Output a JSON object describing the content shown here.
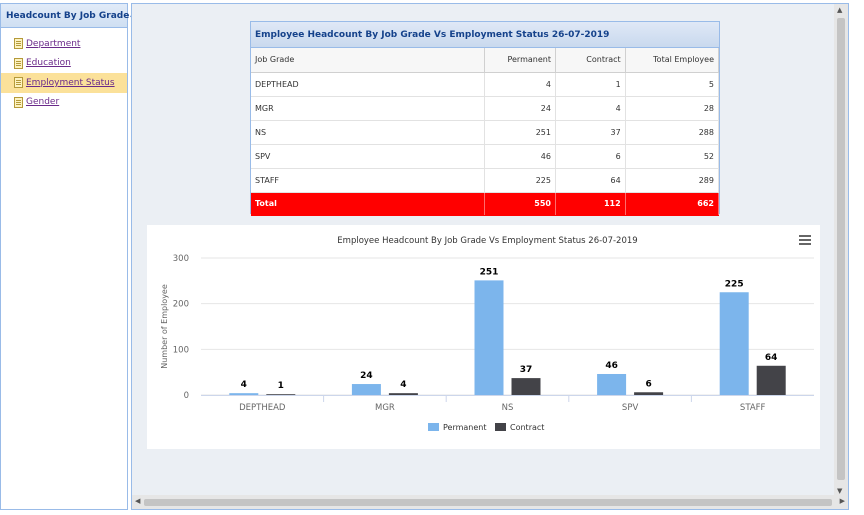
{
  "sidebar": {
    "title": "Headcount By Job Grade",
    "collapse_icon": "double-chevron-left-icon",
    "items": [
      {
        "label": "Department",
        "selected": false
      },
      {
        "label": "Education",
        "selected": false
      },
      {
        "label": "Employment Status",
        "selected": true
      },
      {
        "label": "Gender",
        "selected": false
      }
    ]
  },
  "table": {
    "title": "Employee Headcount By Job Grade Vs Employment Status 26-07-2019",
    "headers": [
      "Job Grade",
      "Permanent",
      "Contract",
      "Total Employee"
    ],
    "rows": [
      [
        "DEPTHEAD",
        "4",
        "1",
        "5"
      ],
      [
        "MGR",
        "24",
        "4",
        "28"
      ],
      [
        "NS",
        "251",
        "37",
        "288"
      ],
      [
        "SPV",
        "46",
        "6",
        "52"
      ],
      [
        "STAFF",
        "225",
        "64",
        "289"
      ]
    ],
    "total": [
      "Total",
      "550",
      "112",
      "662"
    ],
    "total_color": "#ff0000"
  },
  "chart_data": {
    "type": "bar",
    "title": "Employee Headcount By Job Grade Vs Employment Status 26-07-2019",
    "xlabel": "",
    "ylabel": "Number of Employee",
    "categories": [
      "DEPTHEAD",
      "MGR",
      "NS",
      "SPV",
      "STAFF"
    ],
    "series": [
      {
        "name": "Permanent",
        "values": [
          4,
          24,
          251,
          46,
          225
        ],
        "color": "#7cb5ec"
      },
      {
        "name": "Contract",
        "values": [
          1,
          4,
          37,
          6,
          64
        ],
        "color": "#434348"
      }
    ],
    "ylim": [
      0,
      300
    ],
    "yticks": [
      0,
      100,
      200,
      300
    ],
    "grid": true,
    "legend": "bottom-center",
    "menu_icon": "hamburger-menu-icon"
  }
}
